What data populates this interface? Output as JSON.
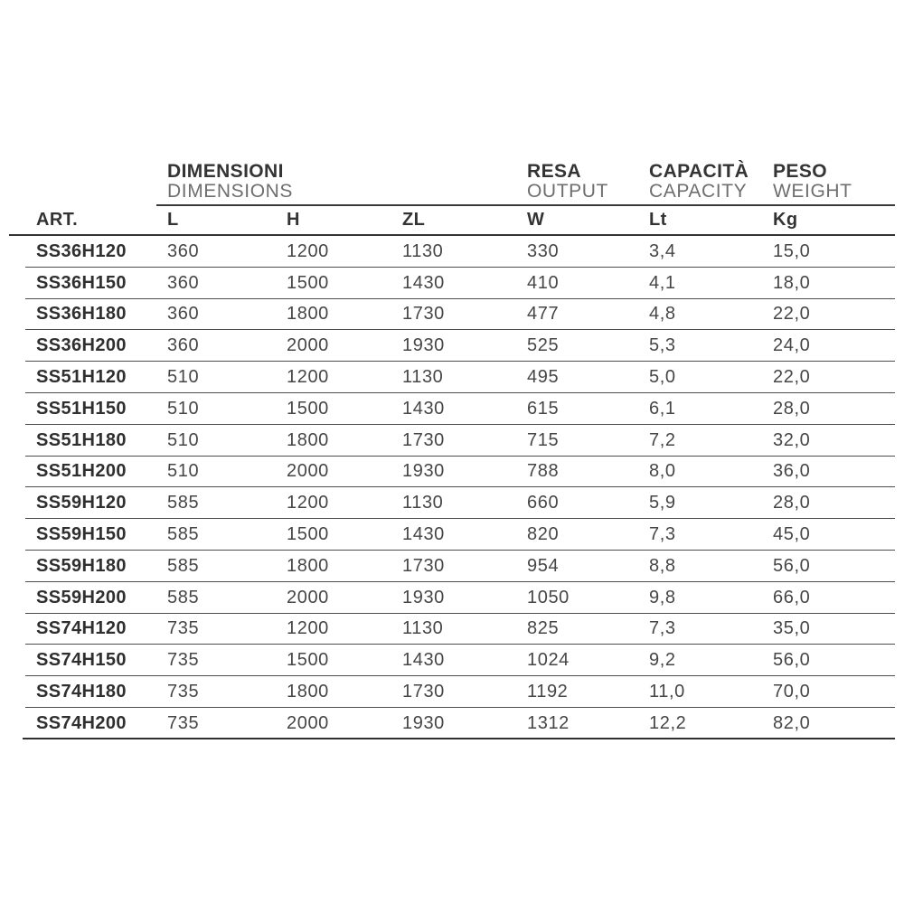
{
  "page": {
    "background": "#ffffff"
  },
  "table": {
    "groups": [
      {
        "title": "DIMENSIONI",
        "subtitle": "DIMENSIONS"
      },
      {
        "title": "RESA",
        "subtitle": "OUTPUT"
      },
      {
        "title": "CAPACITÀ",
        "subtitle": "CAPACITY"
      },
      {
        "title": "PESO",
        "subtitle": "WEIGHT"
      }
    ],
    "columns": [
      "ART.",
      "L",
      "H",
      "ZL",
      "W",
      "Lt",
      "Kg"
    ],
    "rows": [
      [
        "SS36H120",
        "360",
        "1200",
        "1130",
        "330",
        "3,4",
        "15,0"
      ],
      [
        "SS36H150",
        "360",
        "1500",
        "1430",
        "410",
        "4,1",
        "18,0"
      ],
      [
        "SS36H180",
        "360",
        "1800",
        "1730",
        "477",
        "4,8",
        "22,0"
      ],
      [
        "SS36H200",
        "360",
        "2000",
        "1930",
        "525",
        "5,3",
        "24,0"
      ],
      [
        "SS51H120",
        "510",
        "1200",
        "1130",
        "495",
        "5,0",
        "22,0"
      ],
      [
        "SS51H150",
        "510",
        "1500",
        "1430",
        "615",
        "6,1",
        "28,0"
      ],
      [
        "SS51H180",
        "510",
        "1800",
        "1730",
        "715",
        "7,2",
        "32,0"
      ],
      [
        "SS51H200",
        "510",
        "2000",
        "1930",
        "788",
        "8,0",
        "36,0"
      ],
      [
        "SS59H120",
        "585",
        "1200",
        "1130",
        "660",
        "5,9",
        "28,0"
      ],
      [
        "SS59H150",
        "585",
        "1500",
        "1430",
        "820",
        "7,3",
        "45,0"
      ],
      [
        "SS59H180",
        "585",
        "1800",
        "1730",
        "954",
        "8,8",
        "56,0"
      ],
      [
        "SS59H200",
        "585",
        "2000",
        "1930",
        "1050",
        "9,8",
        "66,0"
      ],
      [
        "SS74H120",
        "735",
        "1200",
        "1130",
        "825",
        "7,3",
        "35,0"
      ],
      [
        "SS74H150",
        "735",
        "1500",
        "1430",
        "1024",
        "9,2",
        "56,0"
      ],
      [
        "SS74H180",
        "735",
        "1800",
        "1730",
        "1192",
        "11,0",
        "70,0"
      ],
      [
        "SS74H200",
        "735",
        "2000",
        "1930",
        "1312",
        "12,2",
        "82,0"
      ]
    ],
    "colors": {
      "text_dark": "#343434",
      "text_light": "#6e6e6e",
      "rule_dark": "#323232",
      "rule_light": "#4d4d4d"
    }
  }
}
